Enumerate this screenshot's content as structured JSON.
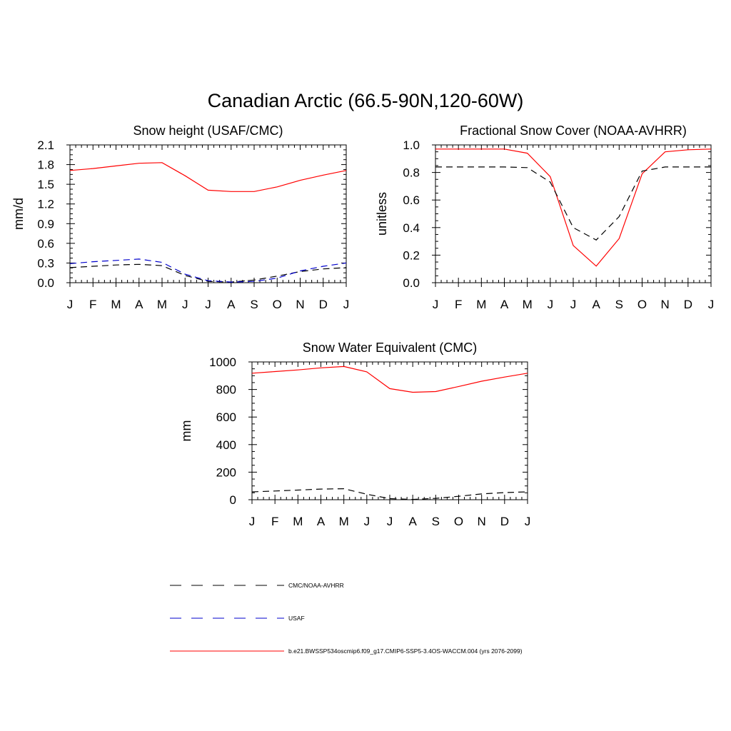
{
  "figure": {
    "title": "Canadian Arctic (66.5-90N,120-60W)"
  },
  "colors": {
    "model": "#ff0000",
    "cmc": "#000000",
    "usaf": "#0000cc"
  },
  "legend": {
    "placement": "bottom",
    "entries": [
      {
        "label": "CMC/NOAA-AVHRR",
        "style": "dashed",
        "color": "#000000"
      },
      {
        "label": "USAF",
        "style": "dashed",
        "color": "#0000cc"
      },
      {
        "label": "b.e21.BWSSP534oscmip6.f09_g17.CMIP6-SSP5-3.4OS-WACCM.004 (yrs 2076-2099)",
        "style": "solid",
        "color": "#ff0000"
      }
    ]
  },
  "chart_data": [
    {
      "type": "line",
      "title": "Snow height (USAF/CMC)",
      "xlabel": "",
      "ylabel": "mm/d",
      "categories": [
        "J",
        "F",
        "M",
        "A",
        "M",
        "J",
        "J",
        "A",
        "S",
        "O",
        "N",
        "D",
        "J"
      ],
      "ylim": [
        0,
        2.1
      ],
      "yticks": [
        "0.0",
        "0.3",
        "0.6",
        "0.9",
        "1.2",
        "1.5",
        "1.8",
        "2.1"
      ],
      "ytick_values": [
        0,
        0.3,
        0.6,
        0.9,
        1.2,
        1.5,
        1.8,
        2.1
      ],
      "series": [
        {
          "style": "solid",
          "color": "#ff0000",
          "values": [
            1.71,
            1.74,
            1.78,
            1.82,
            1.83,
            1.63,
            1.41,
            1.39,
            1.39,
            1.46,
            1.56,
            1.64,
            1.71
          ]
        },
        {
          "style": "dashed",
          "color": "#000000",
          "values": [
            0.23,
            0.25,
            0.27,
            0.28,
            0.26,
            0.11,
            0.02,
            0.01,
            0.04,
            0.1,
            0.17,
            0.21,
            0.23
          ]
        },
        {
          "style": "dashed",
          "color": "#0000cc",
          "values": [
            0.29,
            0.32,
            0.34,
            0.36,
            0.31,
            0.13,
            0.03,
            0.01,
            0.02,
            0.07,
            0.18,
            0.25,
            0.3
          ]
        }
      ]
    },
    {
      "type": "line",
      "title": "Fractional Snow Cover (NOAA-AVHRR)",
      "xlabel": "",
      "ylabel": "unitless",
      "categories": [
        "J",
        "F",
        "M",
        "A",
        "M",
        "J",
        "J",
        "A",
        "S",
        "O",
        "N",
        "D",
        "J"
      ],
      "ylim": [
        0,
        1.0
      ],
      "yticks": [
        "0.0",
        "0.2",
        "0.4",
        "0.6",
        "0.8",
        "1.0"
      ],
      "ytick_values": [
        0,
        0.2,
        0.4,
        0.6,
        0.8,
        1.0
      ],
      "series": [
        {
          "style": "solid",
          "color": "#ff0000",
          "values": [
            0.97,
            0.97,
            0.97,
            0.97,
            0.94,
            0.77,
            0.27,
            0.12,
            0.32,
            0.79,
            0.95,
            0.965,
            0.97
          ]
        },
        {
          "style": "dashed",
          "color": "#000000",
          "values": [
            0.84,
            0.84,
            0.84,
            0.84,
            0.835,
            0.73,
            0.4,
            0.31,
            0.48,
            0.81,
            0.84,
            0.84,
            0.84
          ]
        }
      ]
    },
    {
      "type": "line",
      "title": "Snow Water Equivalent (CMC)",
      "xlabel": "",
      "ylabel": "mm",
      "categories": [
        "J",
        "F",
        "M",
        "A",
        "M",
        "J",
        "J",
        "A",
        "S",
        "O",
        "N",
        "D",
        "J"
      ],
      "ylim": [
        0,
        1000
      ],
      "yticks": [
        "0",
        "200",
        "400",
        "600",
        "800",
        "1000"
      ],
      "ytick_values": [
        0,
        200,
        400,
        600,
        800,
        1000
      ],
      "series": [
        {
          "style": "solid",
          "color": "#ff0000",
          "values": [
            918,
            930,
            942,
            957,
            967,
            928,
            806,
            780,
            785,
            822,
            860,
            890,
            918
          ]
        },
        {
          "style": "dashed",
          "color": "#000000",
          "values": [
            57,
            63,
            70,
            77,
            80,
            40,
            8,
            2,
            10,
            25,
            42,
            52,
            57
          ]
        }
      ]
    }
  ]
}
